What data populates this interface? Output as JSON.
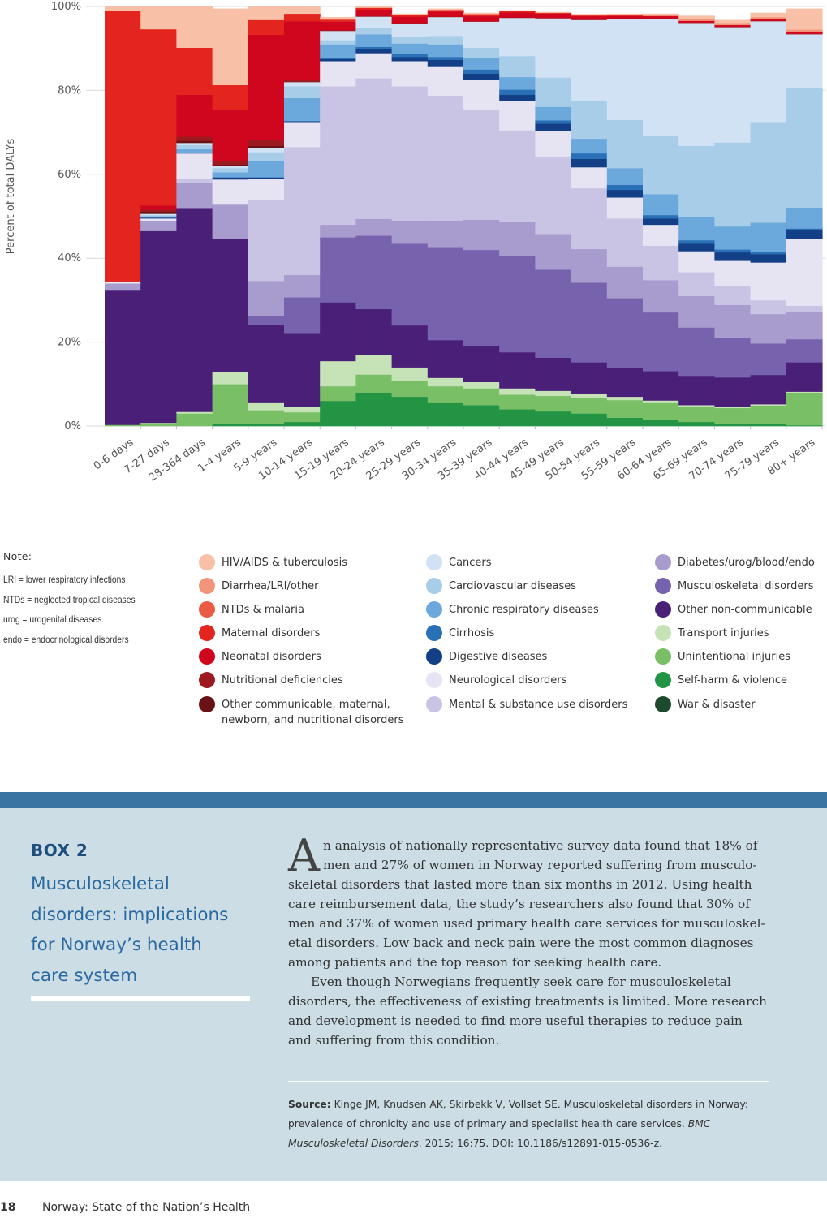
{
  "chart_data": {
    "type": "area",
    "stacked": true,
    "step": true,
    "ylabel": "Percent of total DALYs",
    "ylim": [
      0,
      100
    ],
    "yticks": [
      "0%",
      "20%",
      "40%",
      "60%",
      "80%",
      "100%"
    ],
    "grid": true,
    "categories": [
      "0-6 days",
      "7-27 days",
      "28-364 days",
      "1-4 years",
      "5-9 years",
      "10-14 years",
      "15-19 years",
      "20-24 years",
      "25-29 years",
      "30-34 years",
      "35-39 years",
      "40-44 years",
      "45-49 years",
      "50-54 years",
      "55-59 years",
      "60-64 years",
      "65-69 years",
      "70-74 years",
      "75-79 years",
      "80+ years"
    ],
    "series": [
      {
        "name": "War & disaster",
        "color": "#1b4a2c",
        "values": [
          0.0,
          0.0,
          0.0,
          0.0,
          0.0,
          0.0,
          0.0,
          0.0,
          0.0,
          0.0,
          0.0,
          0.0,
          0.0,
          0.0,
          0.0,
          0.0,
          0.0,
          0.0,
          0.0,
          0.0
        ]
      },
      {
        "name": "Self-harm & violence",
        "color": "#239444",
        "values": [
          0.0,
          0.0,
          0.0,
          0.5,
          0.5,
          1.0,
          6.0,
          8.0,
          7.0,
          5.5,
          5.0,
          4.0,
          3.5,
          3.0,
          2.0,
          1.5,
          1.0,
          0.5,
          0.5,
          0.2
        ]
      },
      {
        "name": "Unintentional injuries",
        "color": "#79bf66",
        "values": [
          0.3,
          0.7,
          3.0,
          9.5,
          3.3,
          2.3,
          3.5,
          4.3,
          3.9,
          4.0,
          4.0,
          3.5,
          3.7,
          3.7,
          4.2,
          4.0,
          3.6,
          3.8,
          4.4,
          7.8
        ]
      },
      {
        "name": "Transport injuries",
        "color": "#c6e3b8",
        "values": [
          0.0,
          0.1,
          0.4,
          3.0,
          1.7,
          1.4,
          6.0,
          4.7,
          3.1,
          2.0,
          1.5,
          1.5,
          1.2,
          1.1,
          0.8,
          0.6,
          0.4,
          0.3,
          0.3,
          0.2
        ]
      },
      {
        "name": "Other non-communicable",
        "color": "#4a1f78",
        "values": [
          32.2,
          45.7,
          48.6,
          31.6,
          18.7,
          17.5,
          14.0,
          10.9,
          10.0,
          9.0,
          8.5,
          8.6,
          7.9,
          7.4,
          7.0,
          7.0,
          7.0,
          7.0,
          7.0,
          7.0
        ]
      },
      {
        "name": "Musculoskeletal disorders",
        "color": "#7762ae",
        "values": [
          0.0,
          0.0,
          0.0,
          0.0,
          2.0,
          8.5,
          15.5,
          17.5,
          19.5,
          22.0,
          23.0,
          23.0,
          21.0,
          19.0,
          16.5,
          14.0,
          11.5,
          9.5,
          7.5,
          5.5
        ]
      },
      {
        "name": "Diabetes/urog/blood/endo",
        "color": "#a89bcd",
        "values": [
          1.5,
          2.5,
          6.0,
          8.2,
          8.4,
          5.3,
          3.0,
          4.0,
          5.5,
          6.5,
          7.2,
          8.2,
          8.5,
          8.0,
          7.5,
          7.7,
          7.5,
          7.8,
          7.0,
          6.5
        ]
      },
      {
        "name": "Mental & substance use disorders",
        "color": "#c9c4e4",
        "values": [
          0.0,
          0.0,
          1.0,
          0.0,
          19.4,
          30.5,
          33.0,
          33.5,
          32.0,
          29.8,
          26.3,
          21.7,
          18.5,
          14.5,
          11.5,
          8.2,
          5.7,
          4.5,
          3.3,
          1.5
        ]
      },
      {
        "name": "Neurological disorders",
        "color": "#e6e3f2",
        "values": [
          0.3,
          0.5,
          6.0,
          6.0,
          5.0,
          6.0,
          6.0,
          6.0,
          6.0,
          7.0,
          7.0,
          7.0,
          6.0,
          5.0,
          5.0,
          5.0,
          5.0,
          6.0,
          9.0,
          16.0
        ]
      },
      {
        "name": "Digestive diseases",
        "color": "#123f86",
        "values": [
          0.1,
          0.2,
          0.2,
          0.5,
          0.3,
          0.2,
          0.5,
          1.0,
          1.0,
          1.5,
          1.5,
          1.5,
          1.8,
          2.0,
          1.8,
          1.5,
          1.8,
          2.0,
          2.0,
          2.0
        ]
      },
      {
        "name": "Cirrhosis",
        "color": "#2a70b6",
        "values": [
          0.0,
          0.0,
          0.0,
          0.0,
          0.0,
          0.0,
          0.3,
          0.5,
          0.7,
          0.7,
          1.0,
          1.2,
          0.8,
          1.3,
          1.2,
          0.8,
          0.8,
          0.7,
          0.5,
          0.4
        ]
      },
      {
        "name": "Chronic respiratory diseases",
        "color": "#6ba8dc",
        "values": [
          0.0,
          0.3,
          0.8,
          1.2,
          4.0,
          5.5,
          3.2,
          3.0,
          2.5,
          3.0,
          2.7,
          3.0,
          3.2,
          3.5,
          4.0,
          5.0,
          5.5,
          5.5,
          7.0,
          5.0
        ]
      },
      {
        "name": "Cardiovascular diseases",
        "color": "#a8cde9",
        "values": [
          0.1,
          0.3,
          1.0,
          1.0,
          2.0,
          2.8,
          1.0,
          1.5,
          1.5,
          2.0,
          2.5,
          5.0,
          7.0,
          9.0,
          11.5,
          14.0,
          17.0,
          20.0,
          24.0,
          28.5
        ]
      },
      {
        "name": "Cancers",
        "color": "#d1e2f4",
        "values": [
          0.0,
          0.3,
          0.5,
          0.5,
          1.0,
          1.0,
          2.2,
          2.7,
          3.2,
          4.5,
          6.2,
          9.1,
          14.1,
          19.3,
          24.1,
          27.8,
          29.3,
          27.5,
          24.0,
          12.8
        ]
      },
      {
        "name": "Other communicable, maternal, newborn, and nutritional disorders",
        "color": "#6a1114",
        "values": [
          0.0,
          0.5,
          0.5,
          0.3,
          0.5,
          0.0,
          0.0,
          0.0,
          0.0,
          0.0,
          0.0,
          0.0,
          0.0,
          0.0,
          0.0,
          0.0,
          0.0,
          0.0,
          0.0,
          0.0
        ]
      },
      {
        "name": "Nutritional deficiencies",
        "color": "#9c1a20",
        "values": [
          0.0,
          0.5,
          1.0,
          1.0,
          1.5,
          0.5,
          0.2,
          0.2,
          0.2,
          0.1,
          0.1,
          0.1,
          0.1,
          0.1,
          0.1,
          0.1,
          0.1,
          0.1,
          0.1,
          0.1
        ]
      },
      {
        "name": "Neonatal disorders",
        "color": "#d0061e",
        "values": [
          0.0,
          1.0,
          10.0,
          12.0,
          25.0,
          14.0,
          2.0,
          1.5,
          1.5,
          1.2,
          1.2,
          1.2,
          1.0,
          0.8,
          0.6,
          0.5,
          0.4,
          0.4,
          0.4,
          0.4
        ]
      },
      {
        "name": "Maternal disorders",
        "color": "#e3241f",
        "values": [
          64.5,
          42.0,
          11.2,
          6.0,
          3.5,
          1.8,
          0.5,
          0.4,
          0.4,
          0.4,
          0.5,
          0.3,
          0.2,
          0.2,
          0.1,
          0.1,
          0.0,
          0.0,
          0.0,
          0.0
        ]
      },
      {
        "name": "NTDs & malaria",
        "color": "#ec5a43",
        "values": [
          0.0,
          0.0,
          0.0,
          0.0,
          0.0,
          0.0,
          0.0,
          0.0,
          0.0,
          0.0,
          0.0,
          0.0,
          0.0,
          0.0,
          0.0,
          0.0,
          0.0,
          0.0,
          0.0,
          0.0
        ]
      },
      {
        "name": "Diarrhea/LRI/other",
        "color": "#f29479",
        "values": [
          0.0,
          0.0,
          0.0,
          0.0,
          0.0,
          0.0,
          0.0,
          0.0,
          0.0,
          0.0,
          0.0,
          0.0,
          0.0,
          0.0,
          0.0,
          0.0,
          0.5,
          0.5,
          0.5,
          0.6
        ]
      },
      {
        "name": "HIV/AIDS & tuberculosis",
        "color": "#f8c0a6",
        "values": [
          1.0,
          5.4,
          9.8,
          18.2,
          3.2,
          1.7,
          0.6,
          0.3,
          0.3,
          0.3,
          0.3,
          0.2,
          0.2,
          0.3,
          0.4,
          0.5,
          0.7,
          0.7,
          1.0,
          5.0
        ]
      }
    ]
  },
  "note": {
    "title": "Note:",
    "lines": [
      "LRI = lower respiratory infections",
      "NTDs = neglected tropical diseases",
      "urog = urogenital diseases",
      "endo = endocrinological disorders"
    ]
  },
  "legend": {
    "col1": [
      {
        "label": "HIV/AIDS & tuberculosis",
        "color": "#f8c0a6"
      },
      {
        "label": "Diarrhea/LRI/other",
        "color": "#f29479"
      },
      {
        "label": "NTDs & malaria",
        "color": "#ec5a43"
      },
      {
        "label": "Maternal disorders",
        "color": "#e3241f"
      },
      {
        "label": "Neonatal disorders",
        "color": "#d0061e"
      },
      {
        "label": "Nutritional deficiencies",
        "color": "#9c1a20"
      },
      {
        "label": "Other communicable, maternal, newborn, and nutritional disorders",
        "color": "#6a1114"
      }
    ],
    "col2": [
      {
        "label": "Cancers",
        "color": "#d1e2f4"
      },
      {
        "label": "Cardiovascular diseases",
        "color": "#a8cde9"
      },
      {
        "label": "Chronic respiratory diseases",
        "color": "#6ba8dc"
      },
      {
        "label": "Cirrhosis",
        "color": "#2a70b6"
      },
      {
        "label": "Digestive diseases",
        "color": "#123f86"
      },
      {
        "label": "Neurological disorders",
        "color": "#e6e3f2"
      },
      {
        "label": "Mental & substance use disorders",
        "color": "#c9c4e4"
      }
    ],
    "col3": [
      {
        "label": "Diabetes/urog/blood/endo",
        "color": "#a89bcd"
      },
      {
        "label": "Musculoskeletal disorders",
        "color": "#7762ae"
      },
      {
        "label": "Other non-communicable",
        "color": "#4a1f78"
      },
      {
        "label": "Transport injuries",
        "color": "#c6e3b8"
      },
      {
        "label": "Unintentional injuries",
        "color": "#79bf66"
      },
      {
        "label": "Self-harm & violence",
        "color": "#239444"
      },
      {
        "label": "War & disaster",
        "color": "#1b4a2c"
      }
    ]
  },
  "box": {
    "kicker": "BOX 2",
    "title": "Musculoskeletal disorders: implications for Norway’s health care system",
    "dropcap": "A",
    "para1": "n analysis of nationally representative survey data found that 18% of men and 27% of women in Norway reported suffering from musculo­skeletal disorders that lasted more than six months in 2012. Using health care reimbursement data, the study’s researchers also found that 30% of men and 37% of women used primary health care services for musculoskel­etal disorders. Low back and neck pain were the most common diagnoses among patients and the top reason for seeking health care.",
    "para2": "Even though Norwegians frequently seek care for musculoskeletal disorders, the effectiveness of existing treatments is limited. More research and development is needed to find more useful therapies to reduce pain and suffering from this condition.",
    "source_label": "Source:",
    "source_text": " Kinge JM, Knudsen AK, Skirbekk V, Vollset SE. Musculoskeletal disorders in Norway: prevalence of chronicity and use of primary and specialist health care ser­vices. ",
    "source_journal": "BMC Musculoskeletal Disorders",
    "source_tail": ". 2015; 16:75. DOI: 10.1186/s12891-015-0536-z."
  },
  "footer": {
    "page_number": "18",
    "publication": "Norway: State of the Nation’s Health"
  }
}
